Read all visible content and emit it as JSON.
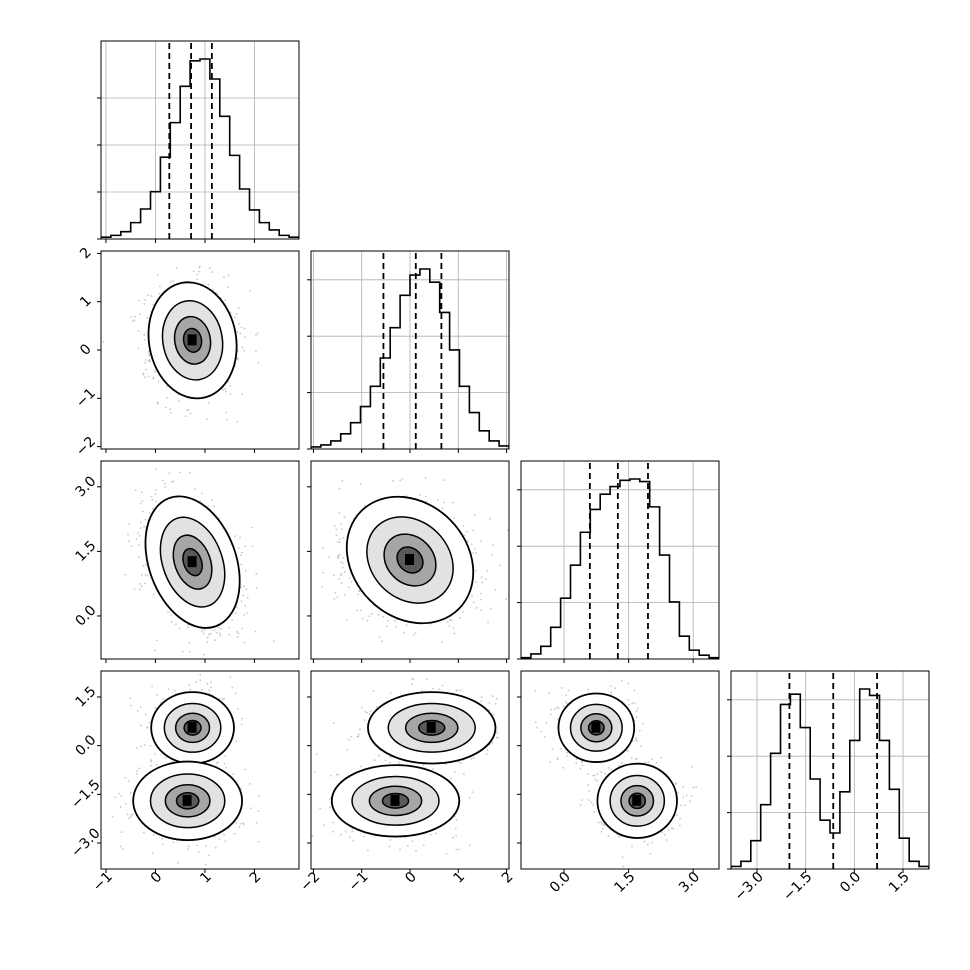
{
  "chart_data": {
    "type": "corner",
    "params": [
      {
        "range": [
          -1.1,
          2.9
        ],
        "ticks": [
          -1,
          0,
          1,
          2
        ],
        "labels": [
          "−1",
          "0",
          "1",
          "2"
        ],
        "quantiles": [
          0.28,
          0.72,
          1.14
        ]
      },
      {
        "range": [
          -2.05,
          2.05
        ],
        "ticks": [
          -2,
          -1,
          0,
          1,
          2
        ],
        "labels": [
          "−2",
          "−1",
          "0",
          "1",
          "2"
        ],
        "quantiles": [
          -0.55,
          0.12,
          0.65
        ]
      },
      {
        "range": [
          -1.0,
          3.6
        ],
        "ticks": [
          0.0,
          1.5,
          3.0
        ],
        "labels": [
          "0.0",
          "1.5",
          "3.0"
        ],
        "quantiles": [
          0.6,
          1.25,
          1.95
        ]
      },
      {
        "range": [
          -3.8,
          2.3
        ],
        "ticks": [
          -3.0,
          -1.5,
          0.0,
          1.5
        ],
        "labels": [
          "−3.0",
          "−1.5",
          "0.0",
          "1.5"
        ],
        "quantiles": [
          -2.0,
          -0.65,
          0.7
        ]
      }
    ],
    "marginals": [
      {
        "bin_edges_start": -1.1,
        "bin_width": 0.2,
        "heights": [
          2,
          4,
          8,
          18,
          33,
          52,
          90,
          128,
          168,
          196,
          198,
          176,
          135,
          92,
          55,
          32,
          18,
          10,
          4,
          2
        ]
      },
      {
        "bin_edges_start": -2.05,
        "bin_width": 0.205,
        "heights": [
          2,
          4,
          8,
          15,
          26,
          42,
          62,
          90,
          120,
          152,
          172,
          178,
          165,
          135,
          98,
          62,
          36,
          18,
          8,
          3
        ]
      },
      {
        "bin_edges_start": -1.0,
        "bin_width": 0.23,
        "heights": [
          1,
          4,
          10,
          25,
          48,
          74,
          100,
          118,
          130,
          136,
          141,
          142,
          140,
          120,
          82,
          45,
          18,
          7,
          3,
          1
        ]
      },
      {
        "bin_edges_start": -3.8,
        "bin_width": 0.305,
        "heights": [
          2,
          6,
          22,
          50,
          90,
          128,
          136,
          110,
          70,
          38,
          28,
          60,
          100,
          140,
          135,
          100,
          62,
          24,
          6,
          2
        ]
      }
    ],
    "joint": [
      {
        "x": 0,
        "y": 1,
        "modes": [
          {
            "mx": 0.75,
            "my": 0.2,
            "sx": 0.4,
            "sy": 0.55,
            "rot": 10
          }
        ]
      },
      {
        "x": 0,
        "y": 2,
        "modes": [
          {
            "mx": 0.75,
            "my": 1.25,
            "sx": 0.4,
            "sy": 0.72,
            "rot": 20
          }
        ]
      },
      {
        "x": 1,
        "y": 2,
        "modes": [
          {
            "mx": 0.0,
            "my": 1.3,
            "sx": 0.65,
            "sy": 0.6,
            "rot": -45
          }
        ]
      },
      {
        "x": 0,
        "y": 3,
        "modes": [
          {
            "mx": 0.75,
            "my": 0.55,
            "sx": 0.38,
            "sy": 0.5,
            "rot": 0
          },
          {
            "mx": 0.65,
            "my": -1.7,
            "sx": 0.5,
            "sy": 0.55,
            "rot": 0
          }
        ]
      },
      {
        "x": 1,
        "y": 3,
        "modes": [
          {
            "mx": 0.45,
            "my": 0.55,
            "sx": 0.6,
            "sy": 0.5,
            "rot": 0
          },
          {
            "mx": -0.3,
            "my": -1.7,
            "sx": 0.6,
            "sy": 0.5,
            "rot": 0
          }
        ]
      },
      {
        "x": 2,
        "y": 3,
        "modes": [
          {
            "mx": 0.75,
            "my": 0.55,
            "sx": 0.4,
            "sy": 0.48,
            "rot": 0
          },
          {
            "mx": 1.7,
            "my": -1.7,
            "sx": 0.42,
            "sy": 0.52,
            "rot": 0
          }
        ]
      }
    ],
    "grid": true,
    "contour_levels": 3
  }
}
